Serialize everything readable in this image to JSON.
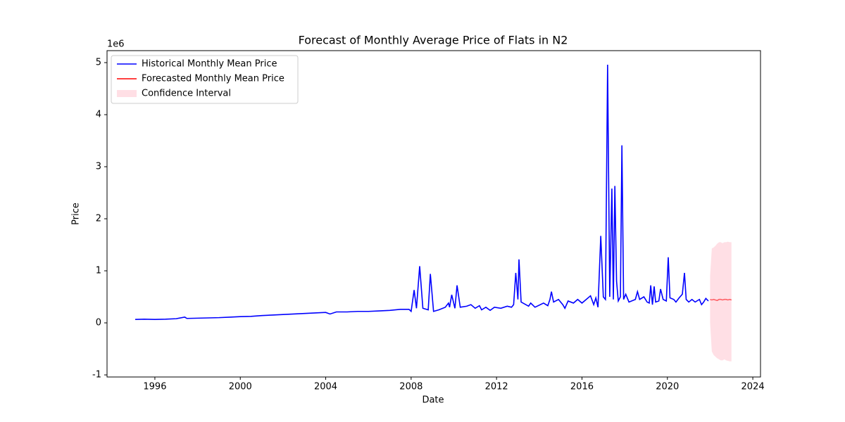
{
  "chart_data": {
    "type": "line",
    "title": "Forecast of Monthly Average Price of Flats in N2",
    "x_label": "Date",
    "y_label": "Price",
    "y_offset_label": "1e6",
    "xlim": [
      1993.76,
      2024.36
    ],
    "ylim": [
      -1.04,
      5.23
    ],
    "xticks": [
      1996,
      2000,
      2004,
      2008,
      2012,
      2016,
      2020,
      2024
    ],
    "yticks": [
      -1,
      0,
      1,
      2,
      3,
      4,
      5
    ],
    "legend": "upper left",
    "series": [
      {
        "name": "Historical Monthly Mean Price",
        "color": "#0000ff",
        "x": [
          1995.08,
          1995.5,
          1996.0,
          1996.5,
          1997.0,
          1997.4,
          1997.5,
          1998.0,
          1998.5,
          1999.0,
          1999.5,
          2000.0,
          2000.5,
          2001.0,
          2001.5,
          2002.0,
          2002.5,
          2003.0,
          2003.5,
          2004.0,
          2004.2,
          2004.5,
          2005.0,
          2005.5,
          2006.0,
          2006.5,
          2007.0,
          2007.5,
          2007.9,
          2008.0,
          2008.14,
          2008.25,
          2008.4,
          2008.55,
          2008.8,
          2008.9,
          2009.05,
          2009.3,
          2009.6,
          2009.75,
          2009.8,
          2009.9,
          2010.05,
          2010.15,
          2010.3,
          2010.6,
          2010.8,
          2011.0,
          2011.2,
          2011.3,
          2011.5,
          2011.7,
          2011.9,
          2012.2,
          2012.5,
          2012.7,
          2012.8,
          2012.9,
          2013.0,
          2013.05,
          2013.15,
          2013.5,
          2013.6,
          2013.8,
          2014.2,
          2014.4,
          2014.5,
          2014.57,
          2014.67,
          2014.9,
          2015.1,
          2015.2,
          2015.35,
          2015.6,
          2015.8,
          2016.0,
          2016.2,
          2016.4,
          2016.55,
          2016.65,
          2016.75,
          2016.88,
          2017.0,
          2017.1,
          2017.2,
          2017.3,
          2017.4,
          2017.47,
          2017.54,
          2017.62,
          2017.7,
          2017.8,
          2017.87,
          2017.95,
          2018.05,
          2018.2,
          2018.5,
          2018.6,
          2018.7,
          2018.9,
          2019.05,
          2019.15,
          2019.22,
          2019.3,
          2019.38,
          2019.45,
          2019.6,
          2019.68,
          2019.8,
          2019.95,
          2020.04,
          2020.12,
          2020.3,
          2020.4,
          2020.55,
          2020.7,
          2020.8,
          2020.88,
          2021.0,
          2021.15,
          2021.3,
          2021.5,
          2021.6,
          2021.7,
          2021.8,
          2021.92
        ],
        "values": [
          0.065,
          0.07,
          0.065,
          0.07,
          0.08,
          0.11,
          0.085,
          0.09,
          0.095,
          0.1,
          0.11,
          0.12,
          0.125,
          0.14,
          0.15,
          0.16,
          0.17,
          0.18,
          0.19,
          0.2,
          0.17,
          0.21,
          0.21,
          0.22,
          0.22,
          0.23,
          0.24,
          0.26,
          0.26,
          0.22,
          0.63,
          0.28,
          1.09,
          0.28,
          0.25,
          0.94,
          0.22,
          0.25,
          0.3,
          0.38,
          0.3,
          0.54,
          0.28,
          0.72,
          0.3,
          0.32,
          0.35,
          0.28,
          0.33,
          0.25,
          0.3,
          0.24,
          0.3,
          0.28,
          0.32,
          0.3,
          0.35,
          0.96,
          0.45,
          1.22,
          0.4,
          0.32,
          0.38,
          0.3,
          0.38,
          0.33,
          0.45,
          0.6,
          0.4,
          0.45,
          0.35,
          0.28,
          0.42,
          0.38,
          0.45,
          0.38,
          0.45,
          0.52,
          0.35,
          0.48,
          0.3,
          1.67,
          0.5,
          0.45,
          4.96,
          0.5,
          2.58,
          0.45,
          2.63,
          0.8,
          0.42,
          0.5,
          3.41,
          0.45,
          0.55,
          0.4,
          0.45,
          0.6,
          0.45,
          0.5,
          0.4,
          0.38,
          0.72,
          0.35,
          0.7,
          0.4,
          0.42,
          0.65,
          0.45,
          0.42,
          1.26,
          0.48,
          0.45,
          0.4,
          0.48,
          0.55,
          0.96,
          0.45,
          0.4,
          0.45,
          0.4,
          0.45,
          0.35,
          0.4,
          0.47,
          0.42
        ]
      },
      {
        "name": "Forecasted Monthly Mean Price",
        "color": "#ff0000",
        "x": [
          2022.0,
          2022.08,
          2022.17,
          2022.25,
          2022.33,
          2022.42,
          2022.5,
          2022.58,
          2022.67,
          2022.75,
          2022.83,
          2022.92,
          2023.0
        ],
        "values": [
          0.45,
          0.44,
          0.45,
          0.44,
          0.43,
          0.45,
          0.45,
          0.44,
          0.45,
          0.45,
          0.44,
          0.45,
          0.44
        ]
      },
      {
        "name": "Confidence Interval",
        "color": "#ffc0cb",
        "x": [
          2022.0,
          2022.08,
          2022.17,
          2022.25,
          2022.33,
          2022.42,
          2022.5,
          2022.58,
          2022.67,
          2022.75,
          2022.83,
          2022.92,
          2023.0
        ],
        "lower": [
          0.0,
          -0.55,
          -0.62,
          -0.65,
          -0.68,
          -0.7,
          -0.72,
          -0.72,
          -0.7,
          -0.72,
          -0.73,
          -0.74,
          -0.74
        ],
        "upper": [
          0.9,
          1.43,
          1.45,
          1.48,
          1.52,
          1.55,
          1.55,
          1.53,
          1.55,
          1.55,
          1.56,
          1.55,
          1.55
        ]
      }
    ]
  }
}
